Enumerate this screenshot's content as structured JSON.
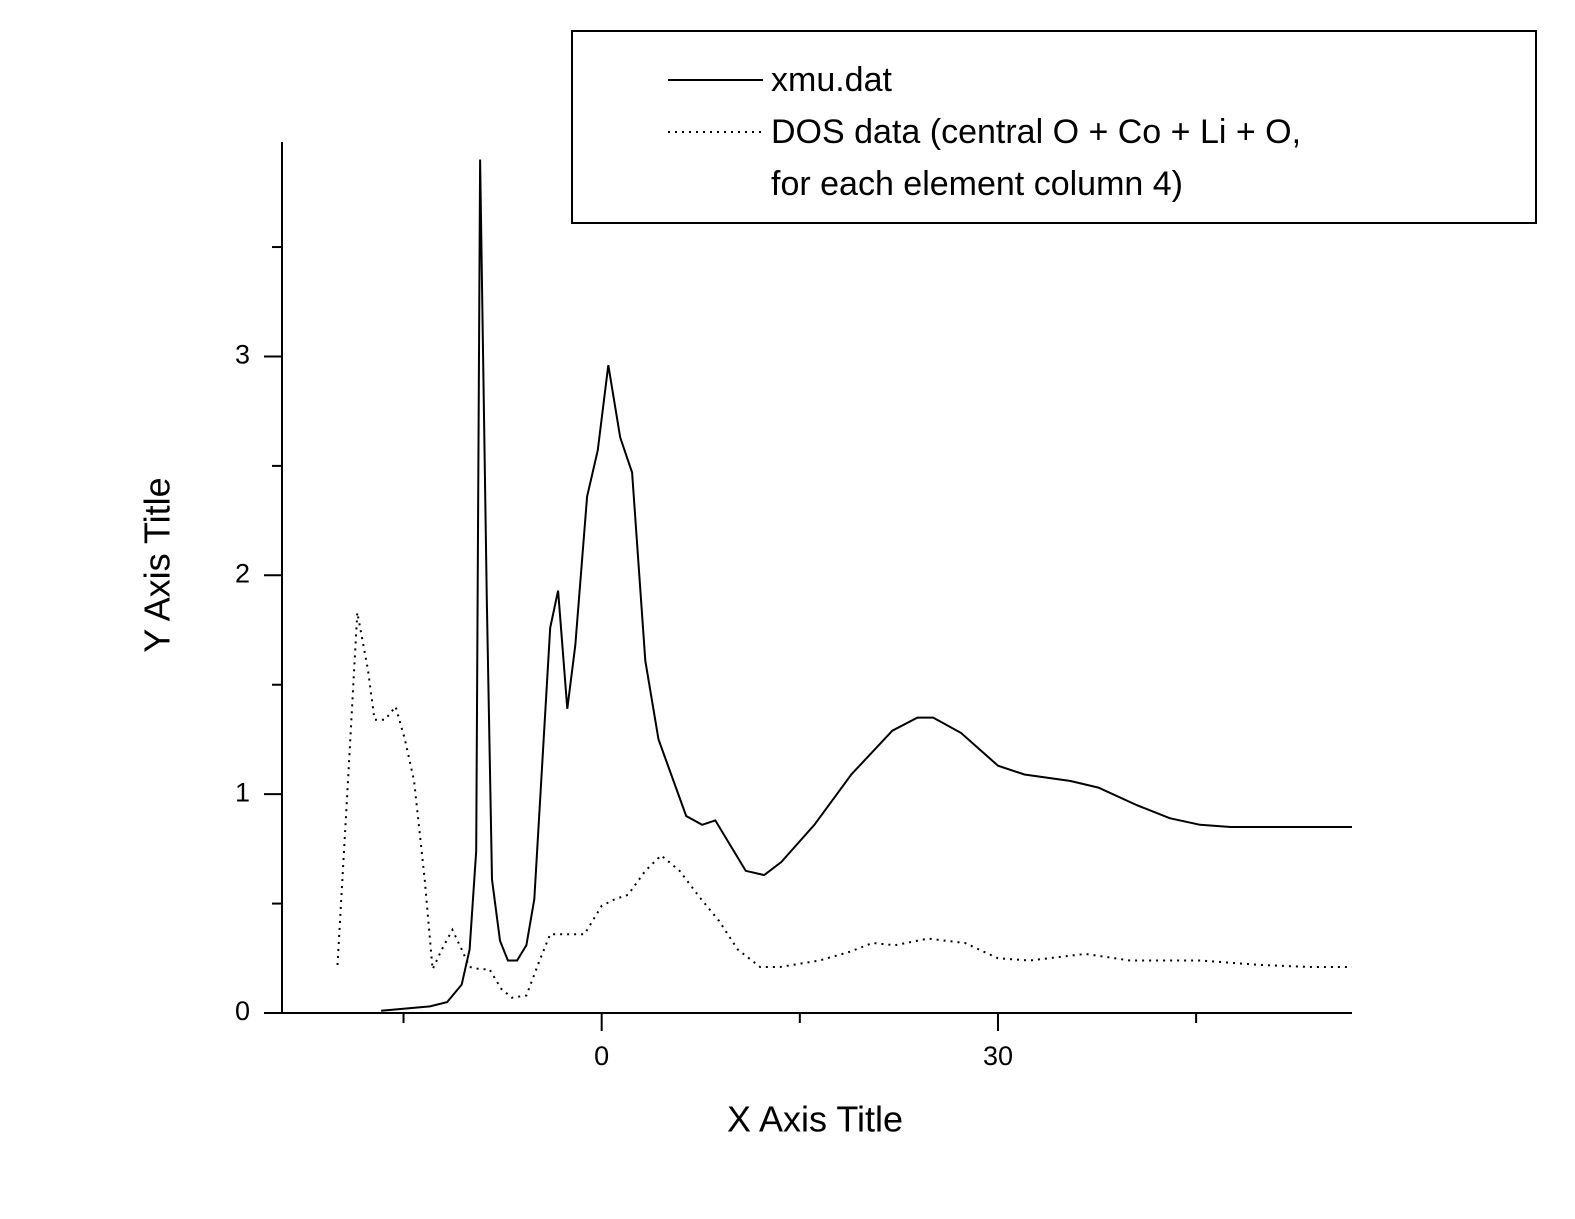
{
  "chart_data": {
    "type": "line",
    "x_label": "X Axis Title",
    "y_label": "Y Axis Title",
    "xlim": [
      -24.2,
      56.8
    ],
    "xticks": [
      0,
      30
    ],
    "xminorticks": [
      -15,
      15,
      45
    ],
    "ylim": [
      0,
      3.98
    ],
    "yticks": [
      0,
      1,
      2,
      3
    ],
    "yminorticks": [
      0.5,
      1.5,
      2.5,
      3.5
    ],
    "legend": "top-right",
    "series": [
      {
        "name": "xmu.dat",
        "color": "#000000",
        "style": "solid",
        "x": [
          -16.7,
          -13.0,
          -11.7,
          -10.6,
          -10.0,
          -9.5,
          -9.2,
          -8.7,
          -8.3,
          -7.7,
          -7.1,
          -6.4,
          -5.7,
          -5.1,
          -3.9,
          -3.3,
          -2.6,
          -2.0,
          -1.1,
          -0.3,
          0.5,
          1.4,
          2.3,
          3.3,
          4.3,
          6.4,
          7.6,
          8.6,
          10.9,
          12.3,
          13.6,
          16.1,
          18.9,
          22.0,
          23.9,
          25.1,
          27.2,
          30.0,
          32.0,
          35.5,
          37.6,
          40.5,
          43.0,
          45.3,
          47.6,
          56.8
        ],
        "values": [
          0.01,
          0.03,
          0.05,
          0.13,
          0.29,
          0.74,
          3.9,
          1.89,
          0.61,
          0.33,
          0.24,
          0.24,
          0.31,
          0.52,
          1.76,
          1.93,
          1.39,
          1.68,
          2.36,
          2.57,
          2.96,
          2.63,
          2.47,
          1.61,
          1.25,
          0.9,
          0.86,
          0.88,
          0.65,
          0.63,
          0.69,
          0.86,
          1.09,
          1.29,
          1.35,
          1.35,
          1.28,
          1.13,
          1.09,
          1.06,
          1.03,
          0.95,
          0.89,
          0.86,
          0.85,
          0.85
        ]
      },
      {
        "name": "DOS data (central O + Co + Li + O,\nfor each element column 4)",
        "color": "#000000",
        "style": "dotted",
        "x": [
          -20.0,
          -19.2,
          -18.5,
          -17.7,
          -17.2,
          -16.4,
          -15.6,
          -14.9,
          -14.2,
          -13.4,
          -12.8,
          -12.1,
          -11.3,
          -10.6,
          -10.0,
          -9.2,
          -8.5,
          -7.6,
          -6.8,
          -5.7,
          -4.7,
          -3.9,
          -3.0,
          -1.3,
          0,
          1.0,
          2.0,
          3.3,
          4.5,
          5.9,
          7.4,
          8.9,
          10.3,
          12.0,
          13.5,
          16.5,
          18.8,
          20.5,
          22.2,
          24.7,
          27.5,
          30.0,
          32.4,
          36.6,
          40.0,
          45.3,
          49.8,
          53.6,
          56.8
        ],
        "values": [
          0.22,
          1.06,
          1.83,
          1.57,
          1.34,
          1.34,
          1.4,
          1.25,
          1.06,
          0.61,
          0.2,
          0.29,
          0.38,
          0.29,
          0.21,
          0.2,
          0.2,
          0.11,
          0.07,
          0.08,
          0.24,
          0.36,
          0.36,
          0.36,
          0.49,
          0.52,
          0.54,
          0.65,
          0.72,
          0.65,
          0.53,
          0.42,
          0.29,
          0.21,
          0.21,
          0.24,
          0.28,
          0.32,
          0.31,
          0.34,
          0.32,
          0.25,
          0.24,
          0.27,
          0.24,
          0.24,
          0.22,
          0.21,
          0.21
        ]
      }
    ]
  }
}
